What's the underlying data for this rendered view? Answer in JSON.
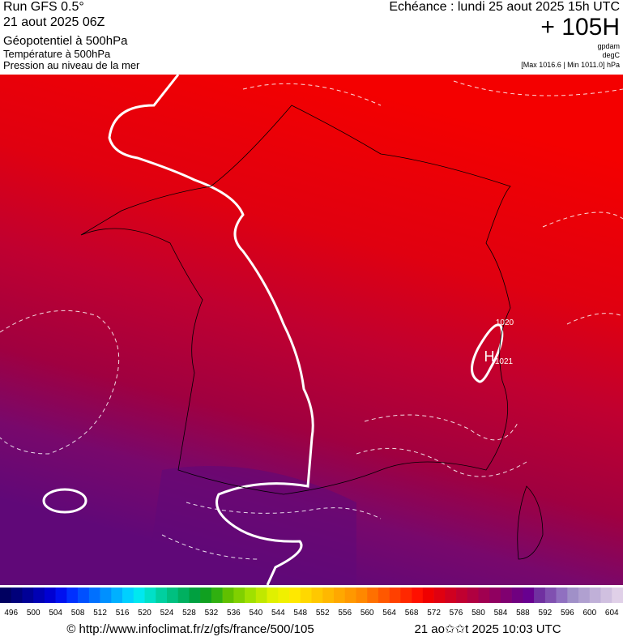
{
  "header": {
    "run": "Run GFS 0.5°",
    "date": "21 aout 2025 06Z",
    "field1": "Géopotentiel à 500hPa",
    "field2": "Température à 500hPa",
    "field3": "Pression au niveau de la mer",
    "forecast": "Echéance : lundi 25 aout 2025 15h UTC",
    "lead": "+ 105H",
    "unit1": "gpdam",
    "unit2": "degC",
    "range": "[Max 1016.6 | Min 1011.0] hPa"
  },
  "map": {
    "labels": [
      "1020",
      "H",
      "1021"
    ]
  },
  "colorbar": {
    "labels": [
      496,
      500,
      504,
      508,
      512,
      516,
      520,
      524,
      528,
      532,
      536,
      540,
      544,
      548,
      552,
      556,
      560,
      564,
      568,
      572,
      576,
      580,
      584,
      588,
      592,
      596,
      600,
      604
    ],
    "colors": [
      "#000060",
      "#00007a",
      "#000096",
      "#0000b4",
      "#0000d2",
      "#0010f0",
      "#0030ff",
      "#0050ff",
      "#0070ff",
      "#0090ff",
      "#00b0ff",
      "#00d0ff",
      "#00e8f0",
      "#00e0c8",
      "#00d0a0",
      "#00c080",
      "#00b060",
      "#00a040",
      "#10a020",
      "#30b010",
      "#60c000",
      "#80d000",
      "#a0e000",
      "#c0e800",
      "#e0f000",
      "#f0f000",
      "#ffe800",
      "#ffd800",
      "#ffc800",
      "#ffb800",
      "#ffa800",
      "#ff9800",
      "#ff8800",
      "#ff7000",
      "#ff5800",
      "#ff4000",
      "#ff2800",
      "#ff1000",
      "#f00000",
      "#e00010",
      "#d00020",
      "#c00030",
      "#b00040",
      "#a00050",
      "#900060",
      "#800070",
      "#700080",
      "#680090",
      "#7030a0",
      "#8050b0",
      "#9070c0",
      "#a090c8",
      "#b0a0d0",
      "#c0b0d8",
      "#d0c0e0",
      "#e0d0e8"
    ]
  },
  "footer": {
    "url": "© http://www.infoclimat.fr/z/gfs/france/500/105",
    "time": "21 ao✩✩t 2025 10:03 UTC"
  }
}
